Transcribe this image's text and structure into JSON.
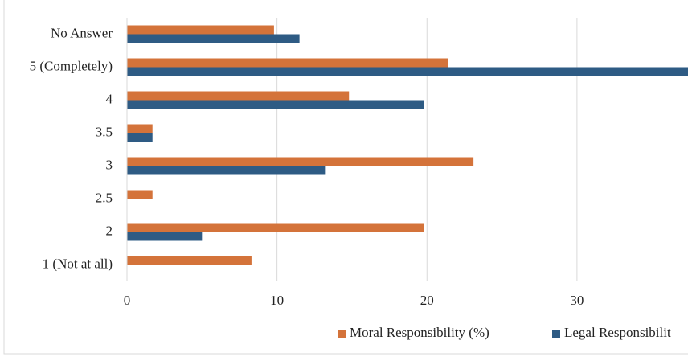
{
  "chart_data": {
    "type": "bar",
    "orientation": "horizontal",
    "categories": [
      "No Answer",
      "5 (Completely)",
      "4",
      "3.5",
      "3",
      "2.5",
      "2",
      "1 (Not at all)"
    ],
    "series": [
      {
        "name": "Moral Responsibility (%)",
        "color": "#d4733a",
        "values": [
          9.8,
          21.4,
          14.8,
          1.7,
          23.1,
          1.7,
          19.8,
          8.3
        ]
      },
      {
        "name": "Legal Responsibilit",
        "color": "#2e5b84",
        "values": [
          11.5,
          37.7,
          19.8,
          1.7,
          13.2,
          0,
          5.0,
          0
        ]
      }
    ],
    "xlim": [
      0,
      37.4
    ],
    "xticks": [
      0,
      10,
      20,
      30
    ],
    "grid": true,
    "legend": "bottom"
  }
}
